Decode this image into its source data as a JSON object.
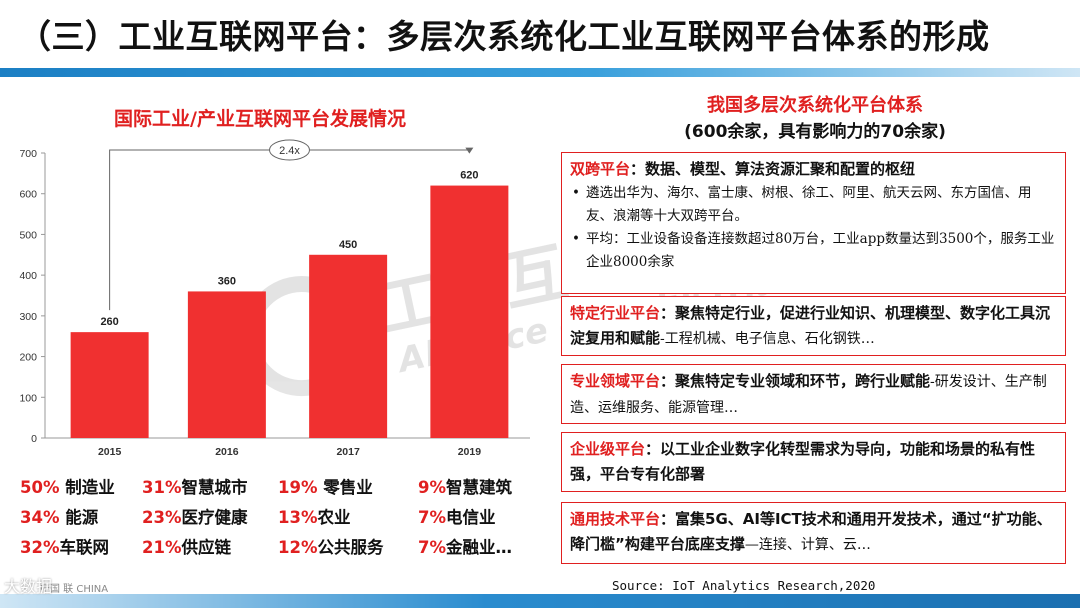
{
  "title": "（三）工业互联网平台：多层次系统化工业互联网平台体系的形成",
  "left": {
    "chart_title": "国际工业/产业互联网平台发展情况"
  },
  "chart_data": {
    "type": "bar",
    "title": "国际工业/产业互联网平台发展情况",
    "categories": [
      "2015",
      "2016",
      "2017",
      "2019"
    ],
    "values": [
      260,
      360,
      450,
      620
    ],
    "data_labels": [
      "260",
      "360",
      "450",
      "620"
    ],
    "ylim": [
      0,
      700
    ],
    "yticks": [
      "0",
      "100",
      "200",
      "300",
      "400",
      "500",
      "600",
      "700"
    ],
    "annotation": "2.4x",
    "bar_color": "#f03030",
    "grid": false
  },
  "stats": [
    {
      "pct": "50%",
      "label": " 制造业"
    },
    {
      "pct": "31%",
      "label": "智慧城市"
    },
    {
      "pct": "19%",
      "label": " 零售业"
    },
    {
      "pct": "9%",
      "label": "智慧建筑"
    },
    {
      "pct": "34%",
      "label": " 能源"
    },
    {
      "pct": "23%",
      "label": "医疗健康"
    },
    {
      "pct": "13%",
      "label": "农业"
    },
    {
      "pct": "7%",
      "label": "电信业"
    },
    {
      "pct": "32%",
      "label": "车联网"
    },
    {
      "pct": "21%",
      "label": "供应链"
    },
    {
      "pct": "12%",
      "label": "公共服务"
    },
    {
      "pct": "7%",
      "label": "金融业…"
    }
  ],
  "right": {
    "title": "我国多层次系统化平台体系",
    "subtitle": "(600余家，具有影响力的70余家)",
    "boxes": [
      {
        "head": "双跨平台",
        "desc": "：数据、模型、算法资源汇聚和配置的枢纽",
        "bullets": [
          "遴选出华为、海尔、富士康、树根、徐工、阿里、航天云网、东方国信、用友、浪潮等十大双跨平台。",
          "平均：工业设备设备连接数超过80万台，工业app数量达到3500个，服务工业企业8000余家"
        ]
      },
      {
        "head": "特定行业平台",
        "desc": "：聚焦特定行业，促进行业知识、机理模型、数字化工具沉淀复用和赋能",
        "detail": "-工程机械、电子信息、石化钢铁…"
      },
      {
        "head": "专业领域平台",
        "desc": "：聚焦特定专业领域和环节，跨行业赋能",
        "detail": "-研发设计、生产制造、运维服务、能源管理…"
      },
      {
        "head": "企业级平台",
        "desc": "：以工业企业数字化转型需求为导向，功能和场景的私有性强，平台专有化部署"
      },
      {
        "head": "通用技术平台",
        "desc": "：富集5G、AI等ICT技术和通用开发技术，通过“扩功能、降门槛”构建平台底座支撑",
        "detail": "—连接、计算、云…"
      }
    ]
  },
  "source": "Source: IoT Analytics Research,2020",
  "footer_logo": "中国    联    CHINA",
  "corner_logo": "大数据"
}
